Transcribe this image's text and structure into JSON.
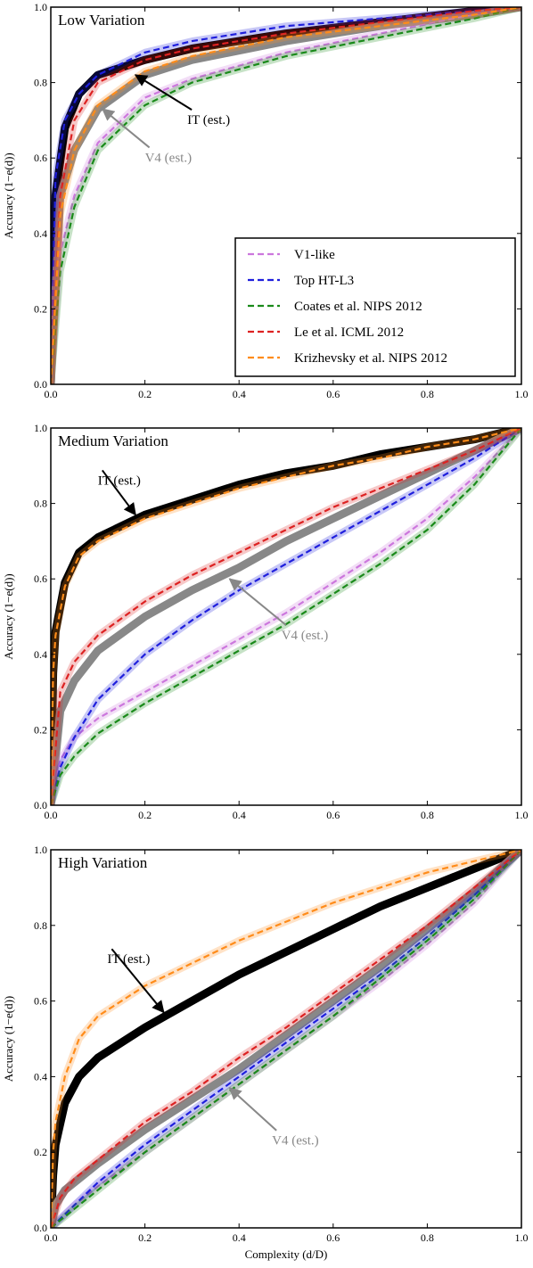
{
  "chart_data": [
    {
      "type": "line",
      "title": "Low Variation",
      "xlabel": "",
      "ylabel": "Accuracy (1−e(d))",
      "xlim": [
        0,
        1
      ],
      "ylim": [
        0,
        1
      ],
      "xticks": [
        "0.0",
        "0.2",
        "0.4",
        "0.6",
        "0.8",
        "1.0"
      ],
      "yticks": [
        "0.0",
        "0.2",
        "0.4",
        "0.6",
        "0.8",
        "1.0"
      ],
      "legend_position": "lower-right",
      "legend": [
        "V1-like",
        "Top HT-L3",
        "Coates et al. NIPS 2012",
        "Le et al. ICML 2012",
        "Krizhevsky et al. NIPS 2012"
      ],
      "series": [
        {
          "name": "V1-like",
          "color": "#cc77dd",
          "x": [
            0,
            0.02,
            0.05,
            0.1,
            0.2,
            0.3,
            0.5,
            0.7,
            0.9,
            1.0
          ],
          "y": [
            0,
            0.35,
            0.5,
            0.64,
            0.76,
            0.81,
            0.88,
            0.93,
            0.98,
            1.0
          ]
        },
        {
          "name": "Top HT-L3",
          "color": "#1f1fdd",
          "x": [
            0,
            0.01,
            0.03,
            0.06,
            0.1,
            0.2,
            0.3,
            0.5,
            0.7,
            0.9,
            1.0
          ],
          "y": [
            0,
            0.55,
            0.7,
            0.77,
            0.82,
            0.88,
            0.91,
            0.95,
            0.97,
            0.99,
            1.0
          ]
        },
        {
          "name": "Coates et al. NIPS 2012",
          "color": "#1a8a1a",
          "x": [
            0,
            0.02,
            0.05,
            0.1,
            0.2,
            0.3,
            0.5,
            0.7,
            0.9,
            1.0
          ],
          "y": [
            0,
            0.3,
            0.47,
            0.62,
            0.74,
            0.8,
            0.87,
            0.92,
            0.97,
            1.0
          ]
        },
        {
          "name": "Le et al. ICML 2012",
          "color": "#dd2222",
          "x": [
            0,
            0.02,
            0.05,
            0.1,
            0.2,
            0.3,
            0.5,
            0.7,
            0.9,
            1.0
          ],
          "y": [
            0,
            0.5,
            0.7,
            0.8,
            0.86,
            0.89,
            0.93,
            0.96,
            0.99,
            1.0
          ]
        },
        {
          "name": "Krizhevsky et al. NIPS 2012",
          "color": "#ff8c1a",
          "x": [
            0,
            0.02,
            0.05,
            0.1,
            0.2,
            0.3,
            0.5,
            0.7,
            0.9,
            1.0
          ],
          "y": [
            0,
            0.45,
            0.62,
            0.74,
            0.83,
            0.87,
            0.92,
            0.95,
            0.98,
            1.0
          ]
        },
        {
          "name": "IT (est.)",
          "color": "#000000",
          "x": [
            0,
            0.01,
            0.03,
            0.06,
            0.1,
            0.2,
            0.3,
            0.5,
            0.7,
            0.9,
            1.0
          ],
          "y": [
            0,
            0.5,
            0.68,
            0.77,
            0.82,
            0.86,
            0.89,
            0.93,
            0.96,
            0.99,
            1.0
          ]
        },
        {
          "name": "V4 (est.)",
          "color": "#888888",
          "x": [
            0,
            0.02,
            0.05,
            0.1,
            0.2,
            0.3,
            0.5,
            0.7,
            0.9,
            1.0
          ],
          "y": [
            0,
            0.5,
            0.62,
            0.73,
            0.82,
            0.86,
            0.91,
            0.95,
            0.98,
            1.0
          ]
        }
      ],
      "annotations": [
        {
          "text": "IT (est.)",
          "color": "#000000",
          "target": [
            0.18,
            0.82
          ],
          "label": [
            0.29,
            0.69
          ]
        },
        {
          "text": "V4 (est.)",
          "color": "#888888",
          "target": [
            0.11,
            0.73
          ],
          "label": [
            0.2,
            0.59
          ]
        }
      ]
    },
    {
      "type": "line",
      "title": "Medium Variation",
      "xlabel": "",
      "ylabel": "Accuracy (1−e(d))",
      "xlim": [
        0,
        1
      ],
      "ylim": [
        0,
        1
      ],
      "xticks": [
        "0.0",
        "0.2",
        "0.4",
        "0.6",
        "0.8",
        "1.0"
      ],
      "yticks": [
        "0.0",
        "0.2",
        "0.4",
        "0.6",
        "0.8",
        "1.0"
      ],
      "series": [
        {
          "name": "V1-like",
          "color": "#cc77dd",
          "x": [
            0,
            0.02,
            0.05,
            0.1,
            0.2,
            0.3,
            0.4,
            0.5,
            0.6,
            0.7,
            0.8,
            0.9,
            1.0
          ],
          "y": [
            0,
            0.12,
            0.18,
            0.23,
            0.3,
            0.37,
            0.44,
            0.51,
            0.59,
            0.67,
            0.76,
            0.87,
            1.0
          ]
        },
        {
          "name": "Top HT-L3",
          "color": "#1f1fdd",
          "x": [
            0,
            0.02,
            0.05,
            0.1,
            0.2,
            0.3,
            0.4,
            0.5,
            0.6,
            0.7,
            0.8,
            0.9,
            1.0
          ],
          "y": [
            0,
            0.1,
            0.18,
            0.28,
            0.4,
            0.49,
            0.57,
            0.64,
            0.71,
            0.78,
            0.85,
            0.92,
            1.0
          ]
        },
        {
          "name": "Coates et al. NIPS 2012",
          "color": "#1a8a1a",
          "x": [
            0,
            0.02,
            0.05,
            0.1,
            0.2,
            0.3,
            0.4,
            0.5,
            0.6,
            0.7,
            0.8,
            0.9,
            1.0
          ],
          "y": [
            0,
            0.08,
            0.13,
            0.19,
            0.27,
            0.34,
            0.41,
            0.48,
            0.56,
            0.64,
            0.73,
            0.85,
            1.0
          ]
        },
        {
          "name": "Le et al. ICML 2012",
          "color": "#dd2222",
          "x": [
            0,
            0.02,
            0.05,
            0.1,
            0.2,
            0.3,
            0.4,
            0.5,
            0.6,
            0.7,
            0.8,
            0.9,
            1.0
          ],
          "y": [
            0,
            0.3,
            0.38,
            0.45,
            0.54,
            0.61,
            0.67,
            0.73,
            0.79,
            0.84,
            0.89,
            0.94,
            1.0
          ]
        },
        {
          "name": "Krizhevsky et al. NIPS 2012",
          "color": "#ff8c1a",
          "x": [
            0,
            0.005,
            0.01,
            0.03,
            0.06,
            0.1,
            0.2,
            0.3,
            0.4,
            0.5,
            0.6,
            0.7,
            0.8,
            0.9,
            1.0
          ],
          "y": [
            0,
            0.35,
            0.45,
            0.58,
            0.66,
            0.7,
            0.76,
            0.8,
            0.84,
            0.87,
            0.9,
            0.92,
            0.95,
            0.97,
            1.0
          ]
        },
        {
          "name": "IT (est.)",
          "color": "#000000",
          "x": [
            0,
            0.005,
            0.01,
            0.03,
            0.06,
            0.1,
            0.2,
            0.3,
            0.4,
            0.5,
            0.6,
            0.7,
            0.8,
            0.9,
            1.0
          ],
          "y": [
            0,
            0.35,
            0.46,
            0.59,
            0.67,
            0.71,
            0.77,
            0.81,
            0.85,
            0.88,
            0.9,
            0.93,
            0.95,
            0.97,
            1.0
          ]
        },
        {
          "name": "V4 (est.)",
          "color": "#888888",
          "x": [
            0,
            0.02,
            0.05,
            0.1,
            0.2,
            0.3,
            0.4,
            0.5,
            0.6,
            0.7,
            0.8,
            0.9,
            1.0
          ],
          "y": [
            0,
            0.25,
            0.33,
            0.41,
            0.5,
            0.57,
            0.63,
            0.7,
            0.76,
            0.82,
            0.88,
            0.94,
            1.0
          ]
        }
      ],
      "annotations": [
        {
          "text": "IT (est.)",
          "color": "#000000",
          "target": [
            0.18,
            0.77
          ],
          "label": [
            0.1,
            0.85
          ]
        },
        {
          "text": "V4 (est.)",
          "color": "#888888",
          "target": [
            0.38,
            0.6
          ],
          "label": [
            0.49,
            0.44
          ]
        }
      ]
    },
    {
      "type": "line",
      "title": "High Variation",
      "xlabel": "Complexity (d/D)",
      "ylabel": "Accuracy (1−e(d))",
      "xlim": [
        0,
        1
      ],
      "ylim": [
        0,
        1
      ],
      "xticks": [
        "0.0",
        "0.2",
        "0.4",
        "0.6",
        "0.8",
        "1.0"
      ],
      "yticks": [
        "0.0",
        "0.2",
        "0.4",
        "0.6",
        "0.8",
        "1.0"
      ],
      "series": [
        {
          "name": "V1-like",
          "color": "#cc77dd",
          "x": [
            0,
            0.05,
            0.1,
            0.2,
            0.3,
            0.4,
            0.5,
            0.6,
            0.7,
            0.8,
            0.9,
            1.0
          ],
          "y": [
            0,
            0.06,
            0.11,
            0.2,
            0.29,
            0.38,
            0.47,
            0.56,
            0.65,
            0.75,
            0.86,
            1.0
          ]
        },
        {
          "name": "Top HT-L3",
          "color": "#1f1fdd",
          "x": [
            0,
            0.05,
            0.1,
            0.2,
            0.3,
            0.4,
            0.5,
            0.6,
            0.7,
            0.8,
            0.9,
            1.0
          ],
          "y": [
            0,
            0.06,
            0.12,
            0.22,
            0.31,
            0.4,
            0.49,
            0.58,
            0.67,
            0.77,
            0.88,
            1.0
          ]
        },
        {
          "name": "Coates et al. NIPS 2012",
          "color": "#1a8a1a",
          "x": [
            0,
            0.05,
            0.1,
            0.2,
            0.3,
            0.4,
            0.5,
            0.6,
            0.7,
            0.8,
            0.9,
            1.0
          ],
          "y": [
            0,
            0.05,
            0.1,
            0.2,
            0.29,
            0.38,
            0.47,
            0.56,
            0.66,
            0.76,
            0.87,
            1.0
          ]
        },
        {
          "name": "Le et al. ICML 2012",
          "color": "#dd2222",
          "x": [
            0,
            0.02,
            0.05,
            0.1,
            0.2,
            0.3,
            0.4,
            0.5,
            0.6,
            0.7,
            0.8,
            0.9,
            1.0
          ],
          "y": [
            0,
            0.08,
            0.13,
            0.18,
            0.28,
            0.36,
            0.45,
            0.53,
            0.62,
            0.71,
            0.8,
            0.9,
            1.0
          ]
        },
        {
          "name": "Krizhevsky et al. NIPS 2012",
          "color": "#ff8c1a",
          "x": [
            0,
            0.005,
            0.01,
            0.03,
            0.06,
            0.1,
            0.2,
            0.3,
            0.4,
            0.5,
            0.6,
            0.7,
            0.8,
            0.9,
            1.0
          ],
          "y": [
            0,
            0.2,
            0.28,
            0.4,
            0.5,
            0.56,
            0.64,
            0.7,
            0.76,
            0.81,
            0.86,
            0.9,
            0.94,
            0.97,
            1.0
          ]
        },
        {
          "name": "IT (est.)",
          "color": "#000000",
          "x": [
            0,
            0.005,
            0.01,
            0.03,
            0.06,
            0.1,
            0.2,
            0.3,
            0.4,
            0.5,
            0.6,
            0.7,
            0.8,
            0.9,
            1.0
          ],
          "y": [
            0,
            0.14,
            0.22,
            0.33,
            0.4,
            0.45,
            0.53,
            0.6,
            0.67,
            0.73,
            0.79,
            0.85,
            0.9,
            0.95,
            1.0
          ]
        },
        {
          "name": "V4 (est.)",
          "color": "#888888",
          "x": [
            0,
            0.01,
            0.03,
            0.05,
            0.1,
            0.2,
            0.3,
            0.4,
            0.5,
            0.6,
            0.7,
            0.8,
            0.9,
            1.0
          ],
          "y": [
            0,
            0.06,
            0.1,
            0.12,
            0.17,
            0.26,
            0.34,
            0.42,
            0.51,
            0.6,
            0.69,
            0.79,
            0.89,
            1.0
          ]
        }
      ],
      "annotations": [
        {
          "text": "IT (est.)",
          "color": "#000000",
          "target": [
            0.24,
            0.57
          ],
          "label": [
            0.12,
            0.7
          ]
        },
        {
          "text": "V4 (est.)",
          "color": "#888888",
          "target": [
            0.38,
            0.37
          ],
          "label": [
            0.47,
            0.22
          ]
        }
      ]
    }
  ]
}
